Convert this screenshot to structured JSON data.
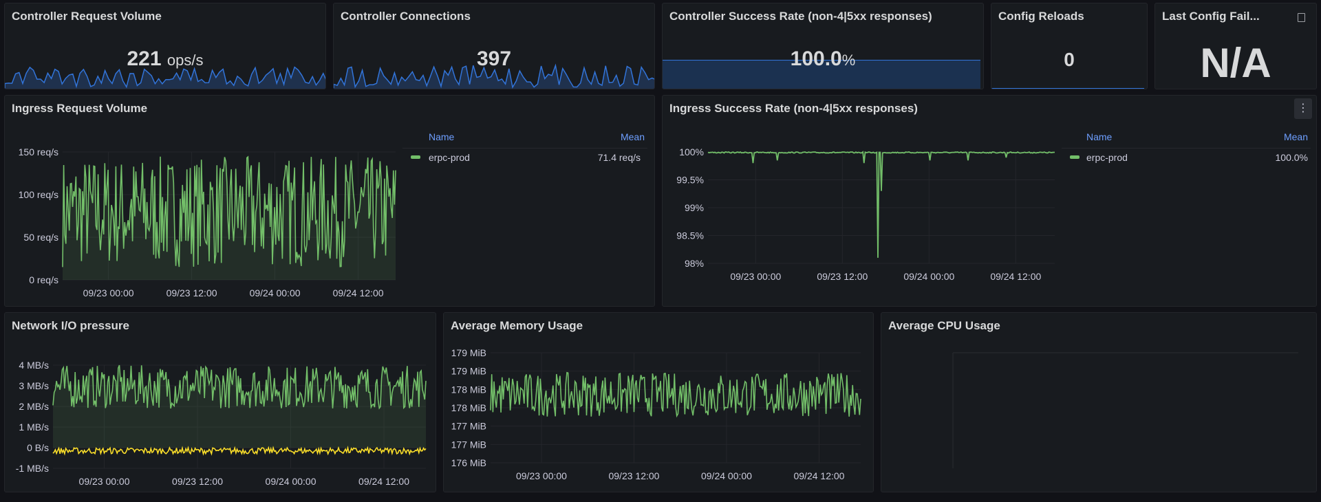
{
  "panels": {
    "controller_request_volume": {
      "title": "Controller Request Volume",
      "value": "221",
      "unit": "ops/s"
    },
    "controller_connections": {
      "title": "Controller Connections",
      "value": "397"
    },
    "controller_success_rate": {
      "title": "Controller Success Rate (non-4|5xx responses)",
      "value": "100.0",
      "unit": "%"
    },
    "config_reloads": {
      "title": "Config Reloads",
      "value": "0"
    },
    "last_config_failed": {
      "title": "Last Config Fail...",
      "value": "N/A",
      "icon": "document-icon"
    },
    "ingress_request_volume": {
      "title": "Ingress Request Volume",
      "legend": {
        "name_header": "Name",
        "mean_header": "Mean",
        "series": "erpc-prod",
        "mean": "71.4 req/s"
      }
    },
    "ingress_success_rate": {
      "title": "Ingress Success Rate (non-4|5xx responses)",
      "legend": {
        "name_header": "Name",
        "mean_header": "Mean",
        "series": "erpc-prod",
        "mean": "100.0%"
      },
      "menu_icon": "kebab-menu-icon"
    },
    "network_io": {
      "title": "Network I/O pressure"
    },
    "memory": {
      "title": "Average Memory Usage"
    },
    "cpu": {
      "title": "Average CPU Usage"
    }
  },
  "colors": {
    "green": "#73bf69",
    "blue": "#3274d9",
    "yellow": "#fade2a",
    "legend_header": "#6e9fff"
  },
  "chart_data": [
    {
      "type": "line",
      "panel": "Ingress Request Volume",
      "yticks": [
        "150 req/s",
        "100 req/s",
        "50 req/s",
        "0 req/s"
      ],
      "xticks": [
        "09/23 00:00",
        "09/23 12:00",
        "09/24 00:00",
        "09/24 12:00"
      ],
      "ylim": [
        0,
        150
      ],
      "series": [
        {
          "name": "erpc-prod",
          "mean": 71.4,
          "range": [
            15,
            145
          ],
          "fill": true
        }
      ]
    },
    {
      "type": "line",
      "panel": "Ingress Success Rate (non-4|5xx responses)",
      "yticks": [
        "100%",
        "99.5%",
        "99%",
        "98.5%",
        "98%"
      ],
      "xticks": [
        "09/23 00:00",
        "09/23 12:00",
        "09/24 00:00",
        "09/24 12:00"
      ],
      "ylim": [
        98,
        100
      ],
      "series": [
        {
          "name": "erpc-prod",
          "mean": 100.0,
          "baseline": 100,
          "dip_min": 98.1
        }
      ]
    },
    {
      "type": "line",
      "panel": "Network I/O pressure",
      "yticks": [
        "4 MB/s",
        "3 MB/s",
        "2 MB/s",
        "1 MB/s",
        "0 B/s",
        "-1 MB/s"
      ],
      "xticks": [
        "09/23 00:00",
        "09/23 12:00",
        "09/24 00:00",
        "09/24 12:00"
      ],
      "ylim": [
        -1,
        4
      ],
      "series": [
        {
          "color": "green",
          "range": [
            1.9,
            4.0
          ],
          "fill": true
        },
        {
          "color": "yellow",
          "range": [
            -0.3,
            0.0
          ]
        }
      ]
    },
    {
      "type": "line",
      "panel": "Average Memory Usage",
      "yticks": [
        "179 MiB",
        "179 MiB",
        "178 MiB",
        "178 MiB",
        "177 MiB",
        "177 MiB",
        "176 MiB"
      ],
      "xticks": [
        "09/23 00:00",
        "09/23 12:00",
        "09/24 00:00",
        "09/24 12:00"
      ],
      "series": [
        {
          "color": "green"
        }
      ]
    }
  ]
}
